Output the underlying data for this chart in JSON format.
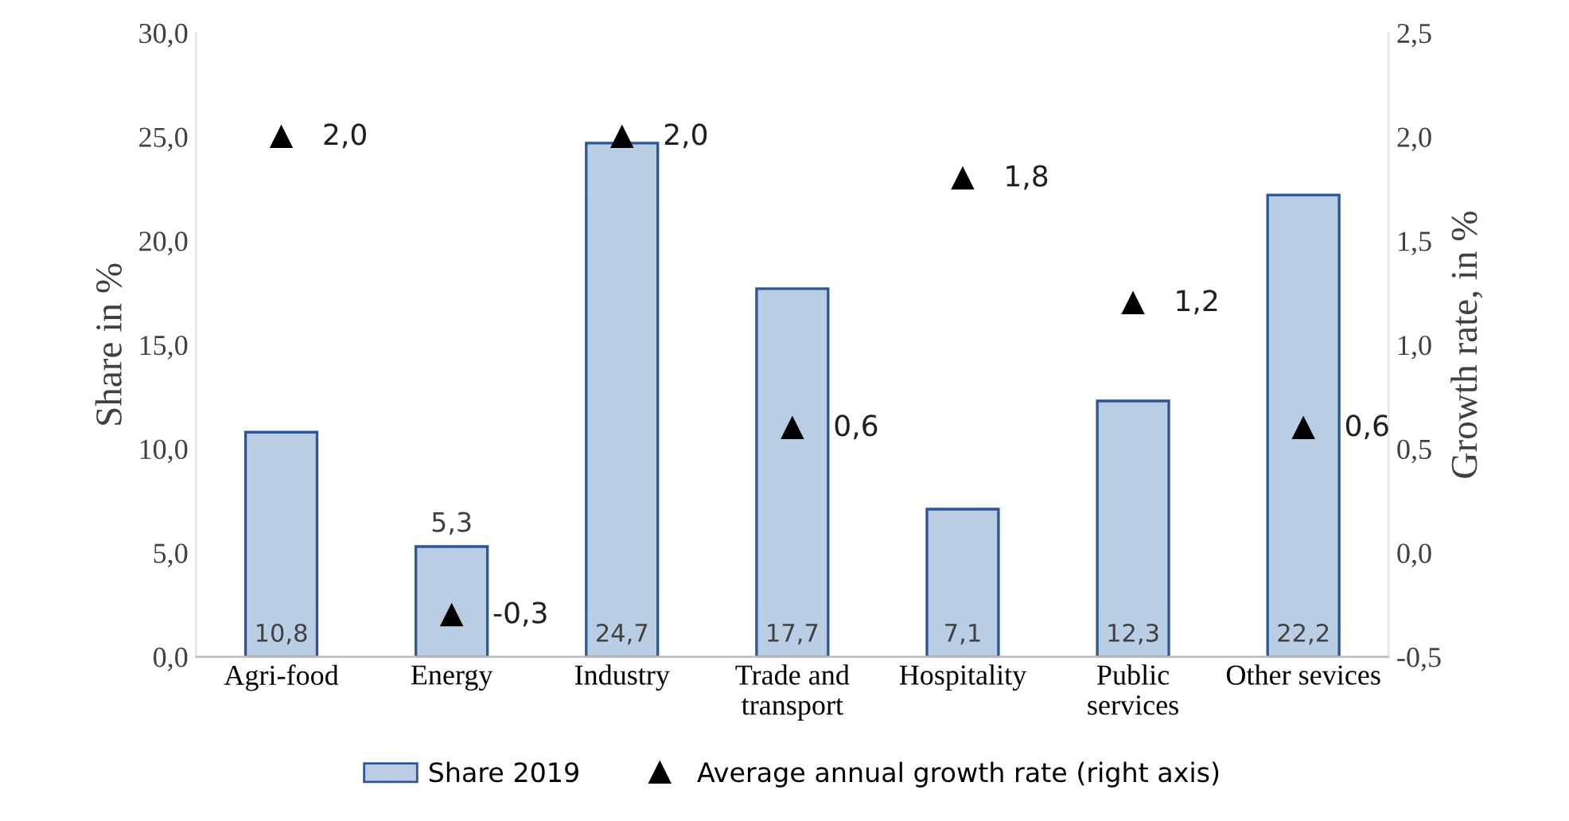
{
  "chart_data": {
    "type": "bar",
    "ylabel": "Share in %",
    "y2label": "Growth rate, in %",
    "categories": [
      "Agri-food",
      "Energy",
      "Industry",
      "Trade and\ntransport",
      "Hospitality",
      "Public\nservices",
      "Other sevices"
    ],
    "series": [
      {
        "name": "Share 2019",
        "color": "#b9cde5",
        "values": [
          10.8,
          5.3,
          24.7,
          17.7,
          7.1,
          12.3,
          22.2
        ],
        "value_labels": [
          "10,8",
          "5,3",
          "24,7",
          "17,7",
          "7,1",
          "12,3",
          "22,2"
        ]
      },
      {
        "name": "Average annual growth rate (right axis)",
        "type": "scatter",
        "axis": "y2",
        "color": "#000000",
        "marker": "triangle",
        "values": [
          2.0,
          -0.3,
          2.0,
          0.6,
          1.8,
          1.2,
          0.6
        ],
        "value_labels": [
          "2,0",
          "-0,3",
          "2,0",
          "0,6",
          "1,8",
          "1,2",
          "0,6"
        ]
      }
    ],
    "ylim": [
      0,
      30
    ],
    "yticks": [
      {
        "value": 0,
        "label": "0,0"
      },
      {
        "value": 5,
        "label": "5,0"
      },
      {
        "value": 10,
        "label": "10,0"
      },
      {
        "value": 15,
        "label": "15,0"
      },
      {
        "value": 20,
        "label": "20,0"
      },
      {
        "value": 25,
        "label": "25,0"
      },
      {
        "value": 30,
        "label": "30,0"
      }
    ],
    "y2lim": [
      -0.5,
      2.5
    ],
    "y2ticks": [
      {
        "value": -0.5,
        "label": "-0,5"
      },
      {
        "value": 0,
        "label": "0,0"
      },
      {
        "value": 0.5,
        "label": "0,5"
      },
      {
        "value": 1,
        "label": "1,0"
      },
      {
        "value": 1.5,
        "label": "1,5"
      },
      {
        "value": 2,
        "label": "2,0"
      },
      {
        "value": 2.5,
        "label": "2,5"
      }
    ],
    "grid": false,
    "legend": "bottom"
  }
}
